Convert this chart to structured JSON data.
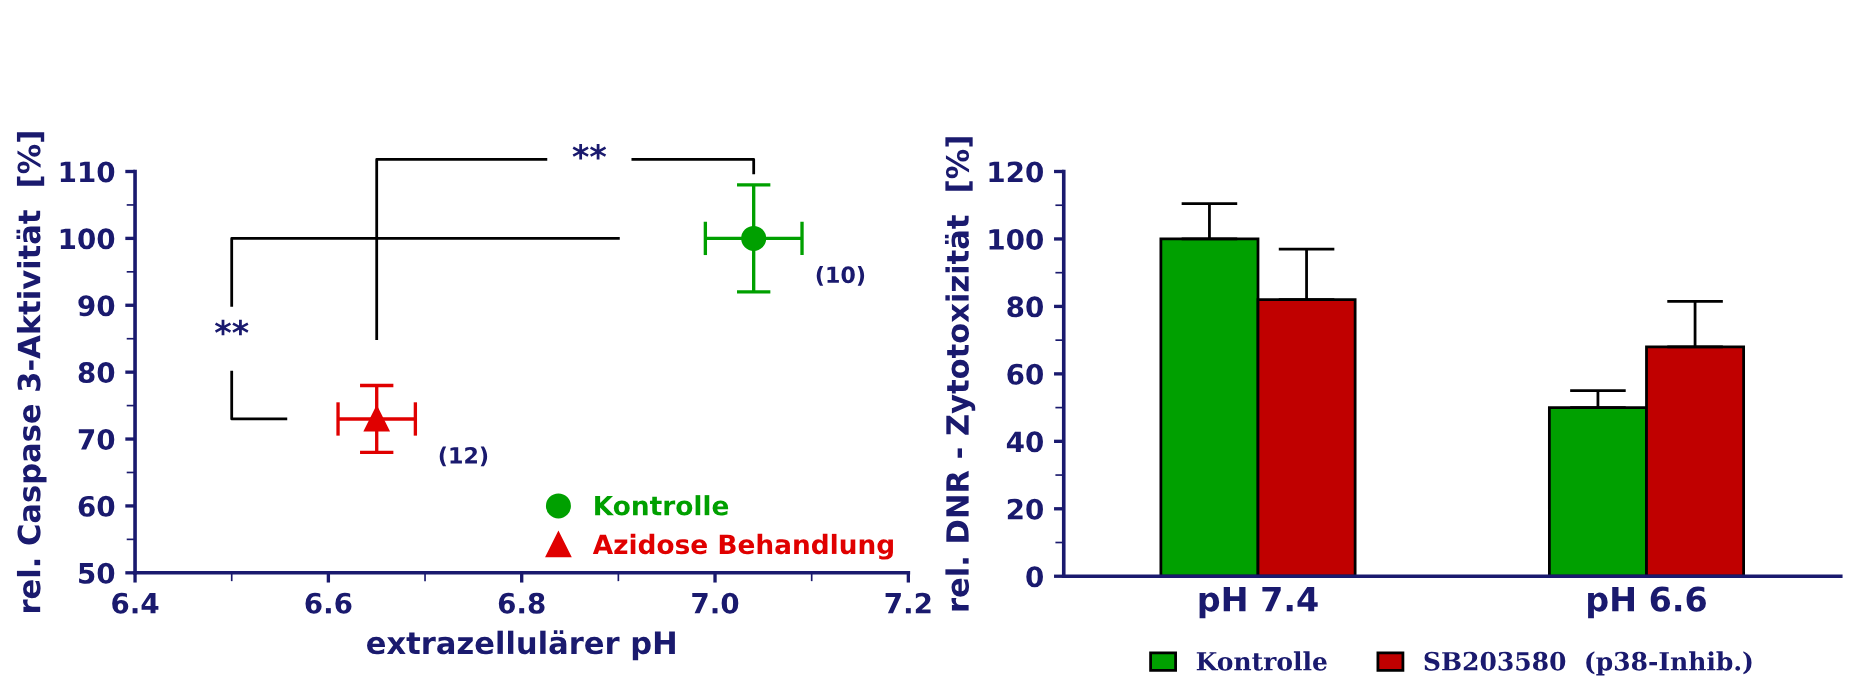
{
  "chart_data": [
    {
      "type": "scatter",
      "xlabel": "extrazellulärer pH",
      "ylabel": "rel. Caspase 3-Aktivität  [%]",
      "series": [
        {
          "name": "Kontrolle",
          "color": "#00a000",
          "marker": "circle",
          "x": [
            7.04
          ],
          "values": [
            100
          ],
          "errors": [
            8
          ],
          "xerrors": [
            0.05
          ]
        },
        {
          "name": "Azidose Behandlung",
          "color": "#e00000",
          "marker": "triangle",
          "x": [
            6.65
          ],
          "values": [
            73
          ],
          "errors": [
            5
          ],
          "xerrors": [
            0.04
          ]
        }
      ],
      "annotations": [
        "(10)",
        "(12)",
        "**",
        "**"
      ],
      "xlim": [
        6.4,
        7.2
      ],
      "xticks": [
        {
          "value": 6.4,
          "label": "6.4"
        },
        {
          "value": 6.6,
          "label": "6.6"
        },
        {
          "value": 6.8,
          "label": "6.8"
        },
        {
          "value": 7.0,
          "label": "7.0"
        },
        {
          "value": 7.2,
          "label": "7.2"
        }
      ],
      "ylim": [
        50,
        110
      ],
      "yticks": [
        50,
        60,
        70,
        80,
        90,
        100,
        110
      ],
      "grid": false,
      "legend": "bottom right"
    },
    {
      "type": "bar",
      "ylabel": "rel. DNR - Zytotoxizität  [%]",
      "categories": [
        "pH 7.4",
        "pH 6.6"
      ],
      "series": [
        {
          "name": "Kontrolle",
          "color": "#00a000",
          "values": [
            100,
            50
          ],
          "errors": [
            [
              100,
              110.5
            ],
            [
              50,
              55
            ]
          ]
        },
        {
          "name": "SB203580  (p38-Inhib.)",
          "color": "#c00000",
          "values": [
            82,
            68
          ],
          "errors": [
            [
              82,
              97
            ],
            [
              68,
              81.5
            ]
          ]
        }
      ],
      "ylim": [
        0,
        120
      ],
      "yticks": [
        0,
        20,
        40,
        60,
        80,
        100,
        120
      ],
      "grid": false,
      "legend": "bottom"
    }
  ]
}
